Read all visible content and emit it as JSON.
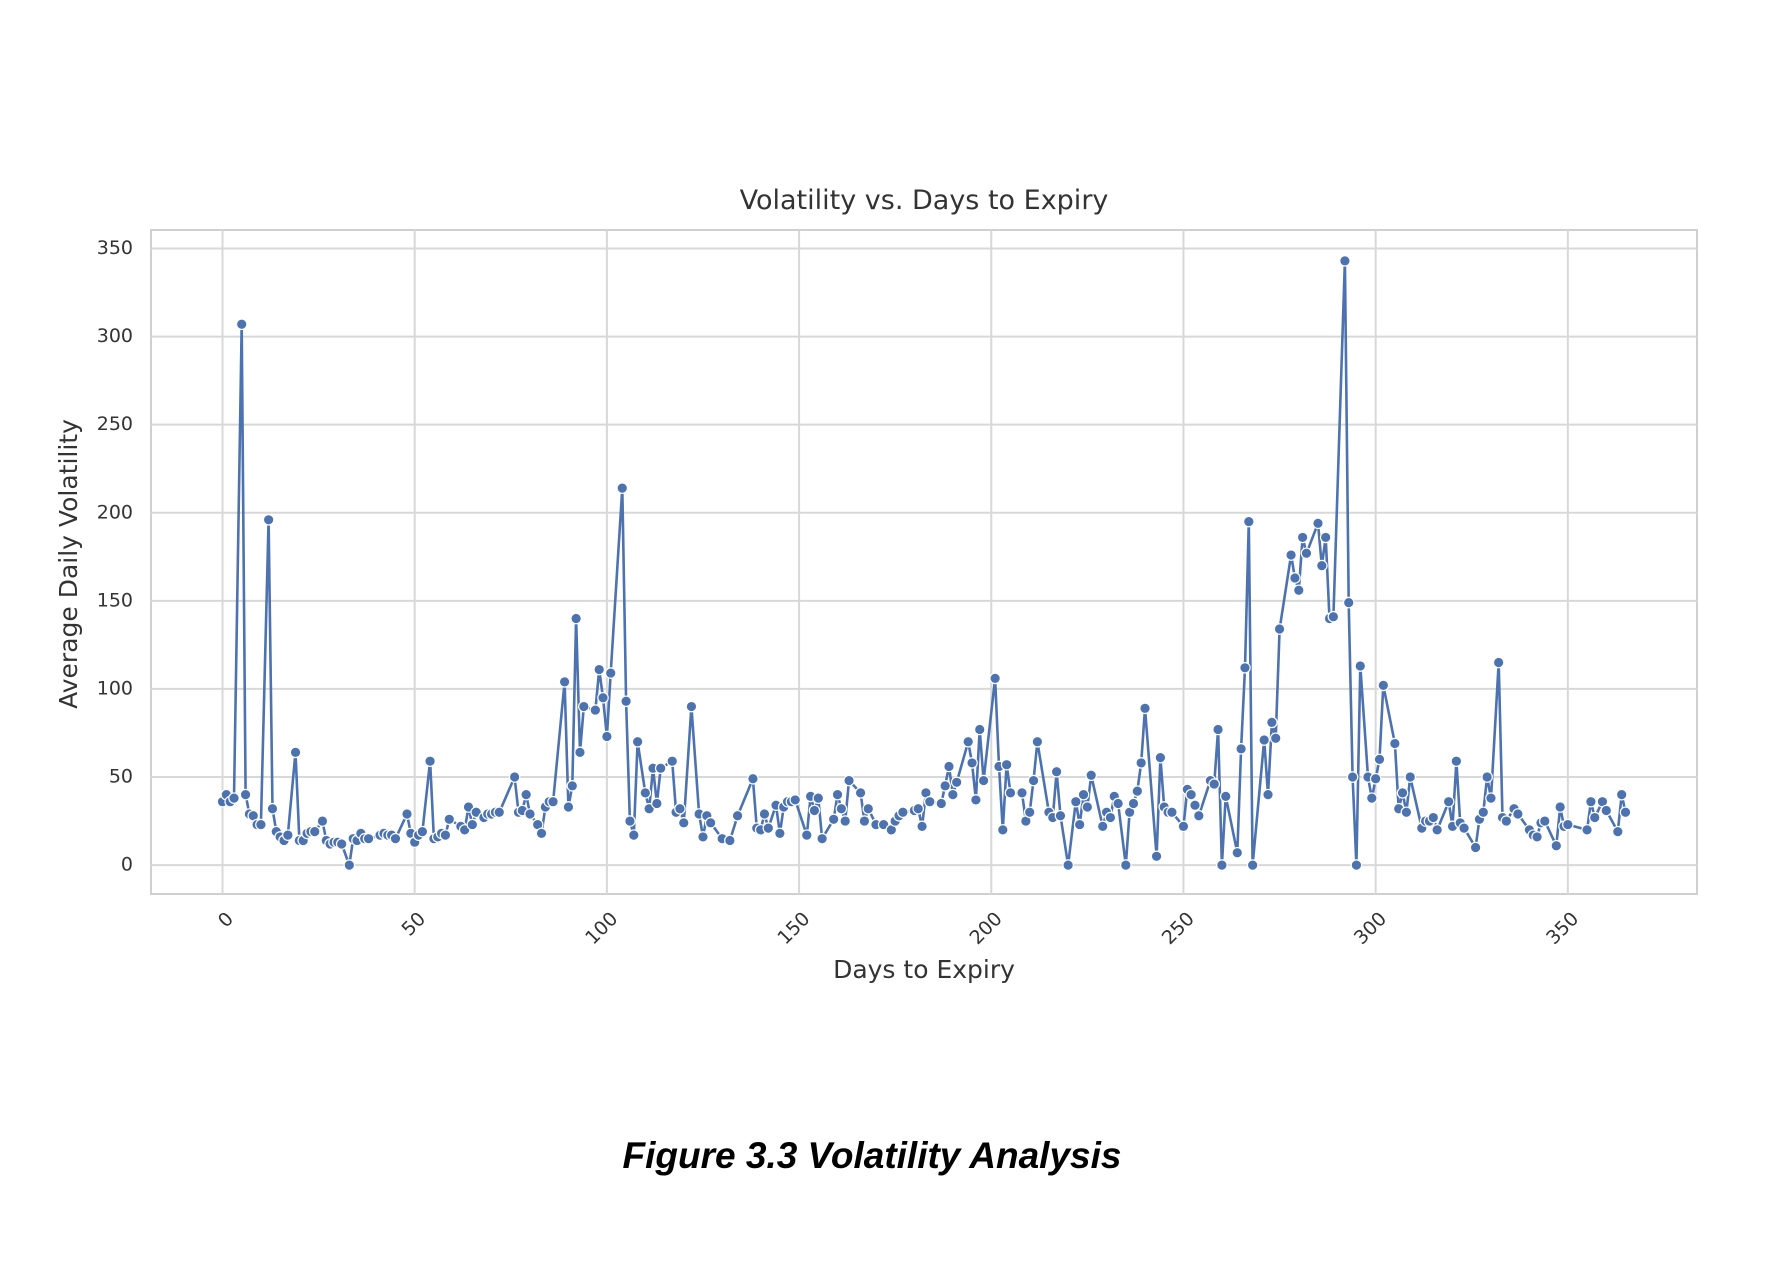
{
  "chart_data": {
    "type": "line",
    "title": "Volatility vs. Days to Expiry",
    "xlabel": "Days to Expiry",
    "ylabel": "Average Daily Volatility",
    "caption": "Figure 3.3 Volatility Analysis",
    "color": "#4c72b0",
    "grid": true,
    "markers": true,
    "xlim": [
      -18.6,
      383.6
    ],
    "ylim": [
      -16.4,
      360.5
    ],
    "xticks": [
      0,
      50,
      100,
      150,
      200,
      250,
      300,
      350
    ],
    "yticks": [
      0,
      50,
      100,
      150,
      200,
      250,
      300,
      350
    ],
    "x": [
      0,
      1,
      2,
      3,
      5,
      6,
      7,
      8,
      9,
      10,
      12,
      13,
      14,
      15,
      16,
      17,
      19,
      20,
      21,
      22,
      23,
      24,
      26,
      27,
      28,
      29,
      30,
      31,
      33,
      34,
      35,
      36,
      37,
      38,
      41,
      42,
      43,
      44,
      45,
      48,
      49,
      50,
      51,
      52,
      54,
      55,
      56,
      57,
      58,
      59,
      62,
      63,
      64,
      65,
      66,
      68,
      69,
      70,
      71,
      72,
      76,
      77,
      78,
      79,
      80,
      82,
      83,
      84,
      85,
      86,
      89,
      90,
      91,
      92,
      93,
      94,
      97,
      98,
      99,
      100,
      101,
      104,
      105,
      106,
      107,
      108,
      110,
      111,
      112,
      113,
      114,
      117,
      118,
      119,
      120,
      122,
      124,
      125,
      126,
      127,
      130,
      132,
      134,
      138,
      139,
      140,
      141,
      142,
      144,
      145,
      146,
      147,
      148,
      149,
      152,
      153,
      154,
      155,
      156,
      159,
      160,
      161,
      162,
      163,
      166,
      167,
      168,
      170,
      172,
      174,
      175,
      176,
      177,
      180,
      181,
      182,
      183,
      184,
      187,
      188,
      189,
      190,
      191,
      194,
      195,
      196,
      197,
      198,
      201,
      202,
      203,
      204,
      205,
      208,
      209,
      210,
      211,
      212,
      215,
      216,
      217,
      218,
      220,
      222,
      223,
      224,
      225,
      226,
      229,
      230,
      231,
      232,
      233,
      235,
      236,
      237,
      238,
      239,
      240,
      243,
      244,
      245,
      246,
      247,
      250,
      251,
      252,
      253,
      254,
      257,
      258,
      259,
      260,
      261,
      264,
      265,
      266,
      267,
      268,
      271,
      272,
      273,
      274,
      275,
      278,
      279,
      280,
      281,
      282,
      285,
      286,
      287,
      288,
      289,
      292,
      293,
      294,
      295,
      296,
      298,
      299,
      300,
      301,
      302,
      305,
      306,
      307,
      308,
      309,
      312,
      313,
      314,
      315,
      316,
      319,
      320,
      321,
      322,
      323,
      326,
      327,
      328,
      329,
      330,
      332,
      333,
      334,
      336,
      337,
      340,
      341,
      342,
      343,
      344,
      347,
      348,
      349,
      350,
      355,
      356,
      357,
      359,
      360,
      363,
      364,
      365
    ],
    "values": [
      36,
      40,
      36,
      38,
      307,
      40,
      29,
      28,
      23,
      23,
      196,
      32,
      19,
      16,
      14,
      17,
      64,
      14,
      14,
      18,
      19,
      19,
      25,
      14,
      12,
      13,
      13,
      12,
      0,
      15,
      14,
      18,
      15,
      15,
      17,
      18,
      17,
      17,
      15,
      29,
      18,
      13,
      17,
      19,
      59,
      15,
      16,
      18,
      17,
      26,
      22,
      20,
      33,
      23,
      30,
      27,
      29,
      29,
      30,
      30,
      50,
      30,
      31,
      40,
      29,
      23,
      18,
      33,
      36,
      36,
      104,
      33,
      45,
      140,
      64,
      90,
      88,
      111,
      95,
      73,
      109,
      214,
      93,
      25,
      17,
      70,
      41,
      32,
      55,
      35,
      55,
      59,
      30,
      32,
      24,
      90,
      29,
      16,
      28,
      24,
      15,
      14,
      28,
      49,
      21,
      20,
      29,
      21,
      34,
      18,
      33,
      36,
      36,
      37,
      17,
      39,
      31,
      38,
      15,
      26,
      40,
      32,
      25,
      48,
      41,
      25,
      32,
      23,
      23,
      20,
      25,
      28,
      30,
      31,
      32,
      22,
      41,
      36,
      35,
      45,
      56,
      40,
      47,
      70,
      58,
      37,
      77,
      48,
      106,
      56,
      20,
      57,
      41,
      41,
      25,
      30,
      48,
      70,
      30,
      27,
      53,
      28,
      0,
      36,
      23,
      40,
      33,
      51,
      22,
      30,
      27,
      39,
      35,
      0,
      30,
      35,
      42,
      58,
      89,
      5,
      61,
      33,
      30,
      30,
      22,
      43,
      40,
      34,
      28,
      48,
      46,
      77,
      0,
      39,
      7,
      66,
      112,
      195,
      0,
      71,
      40,
      81,
      72,
      134,
      176,
      163,
      156,
      186,
      177,
      194,
      170,
      186,
      140,
      141,
      343,
      149,
      50,
      0,
      113,
      50,
      38,
      49,
      60,
      102,
      69,
      32,
      41,
      30,
      50,
      21,
      25,
      25,
      27,
      20,
      36,
      22,
      59,
      24,
      21,
      10,
      26,
      30,
      50,
      38,
      115,
      27,
      25,
      32,
      29,
      20,
      17,
      16,
      24,
      25,
      11,
      33,
      22,
      23,
      20,
      36,
      27,
      36,
      31,
      19,
      40,
      30
    ]
  }
}
